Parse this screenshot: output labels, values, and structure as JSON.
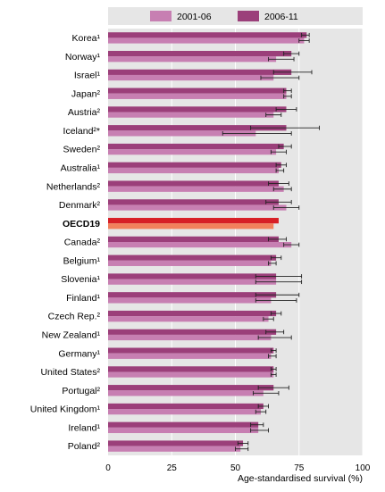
{
  "chart_data": {
    "type": "bar",
    "orientation": "horizontal",
    "xlabel": "Age-standardised survival (%)",
    "xlim": [
      0,
      100
    ],
    "xticks": [
      0,
      25,
      50,
      75,
      100
    ],
    "grid": true,
    "legend_position": "top",
    "colors": {
      "series_2001_06": "#c77fb2",
      "series_2006_11": "#9b3f7a",
      "highlight_2001_06": "#f2805c",
      "highlight_2006_11": "#d71e26",
      "panel": "#e6e6e6",
      "errorbar": "#222222"
    },
    "highlight_category": "OECD19",
    "categories": [
      "Korea¹",
      "Norway¹",
      "Israel¹",
      "Japan²",
      "Austria²",
      "Iceland²*",
      "Sweden²",
      "Australia¹",
      "Netherlands²",
      "Denmark²",
      "OECD19",
      "Canada²",
      "Belgium¹",
      "Slovenia¹",
      "Finland¹",
      "Czech Rep.²",
      "New Zealand¹",
      "Germany¹",
      "United States²",
      "Portugal²",
      "United Kingdom¹",
      "Ireland¹",
      "Poland²"
    ],
    "series": [
      {
        "name": "2001-06",
        "values": [
          77,
          66,
          65,
          70,
          65,
          58,
          66,
          67,
          69,
          70,
          65,
          72,
          64,
          66,
          64,
          63,
          64,
          64,
          65,
          61,
          60,
          59,
          52
        ],
        "error_low": [
          75,
          63,
          60,
          69,
          62,
          45,
          64,
          66,
          65,
          65,
          null,
          69,
          63,
          58,
          58,
          61,
          59,
          63,
          64,
          57,
          58,
          56,
          50
        ],
        "error_high": [
          79,
          73,
          75,
          72,
          68,
          72,
          70,
          69,
          72,
          75,
          null,
          75,
          66,
          76,
          74,
          65,
          72,
          66,
          66,
          67,
          62,
          63,
          55
        ]
      },
      {
        "name": "2006-11",
        "values": [
          78,
          72,
          72,
          70,
          70,
          70,
          69,
          68,
          67,
          67,
          67,
          67,
          66,
          66,
          66,
          66,
          66,
          65,
          65,
          65,
          61,
          59,
          53
        ],
        "error_low": [
          76,
          69,
          65,
          69,
          66,
          56,
          67,
          66,
          63,
          62,
          null,
          63,
          64,
          58,
          58,
          64,
          62,
          64,
          64,
          59,
          59,
          56,
          51
        ],
        "error_high": [
          79,
          75,
          80,
          72,
          74,
          83,
          72,
          70,
          71,
          72,
          null,
          70,
          68,
          76,
          75,
          68,
          69,
          66,
          66,
          71,
          63,
          61,
          55
        ]
      }
    ]
  }
}
